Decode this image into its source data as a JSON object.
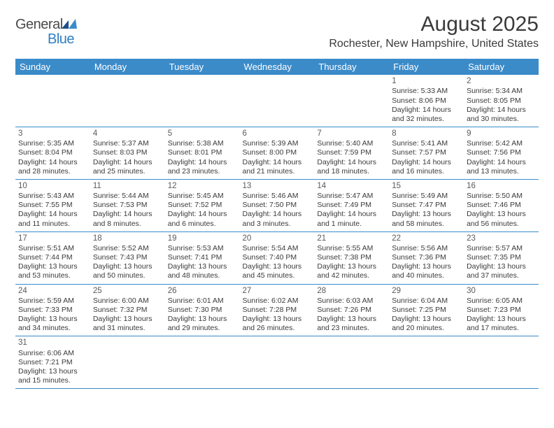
{
  "logo": {
    "part1": "General",
    "part2": "Blue"
  },
  "title": "August 2025",
  "subtitle": "Rochester, New Hampshire, United States",
  "colors": {
    "header_bg": "#3b8bc9",
    "header_fg": "#ffffff",
    "text": "#3a3a3a",
    "logo_blue": "#2f7fc1",
    "row_border": "#3b8bc9"
  },
  "weekdays": [
    "Sunday",
    "Monday",
    "Tuesday",
    "Wednesday",
    "Thursday",
    "Friday",
    "Saturday"
  ],
  "grid": [
    [
      null,
      null,
      null,
      null,
      null,
      {
        "n": "1",
        "sr": "5:33 AM",
        "ss": "8:06 PM",
        "dl": "14 hours and 32 minutes."
      },
      {
        "n": "2",
        "sr": "5:34 AM",
        "ss": "8:05 PM",
        "dl": "14 hours and 30 minutes."
      }
    ],
    [
      {
        "n": "3",
        "sr": "5:35 AM",
        "ss": "8:04 PM",
        "dl": "14 hours and 28 minutes."
      },
      {
        "n": "4",
        "sr": "5:37 AM",
        "ss": "8:03 PM",
        "dl": "14 hours and 25 minutes."
      },
      {
        "n": "5",
        "sr": "5:38 AM",
        "ss": "8:01 PM",
        "dl": "14 hours and 23 minutes."
      },
      {
        "n": "6",
        "sr": "5:39 AM",
        "ss": "8:00 PM",
        "dl": "14 hours and 21 minutes."
      },
      {
        "n": "7",
        "sr": "5:40 AM",
        "ss": "7:59 PM",
        "dl": "14 hours and 18 minutes."
      },
      {
        "n": "8",
        "sr": "5:41 AM",
        "ss": "7:57 PM",
        "dl": "14 hours and 16 minutes."
      },
      {
        "n": "9",
        "sr": "5:42 AM",
        "ss": "7:56 PM",
        "dl": "14 hours and 13 minutes."
      }
    ],
    [
      {
        "n": "10",
        "sr": "5:43 AM",
        "ss": "7:55 PM",
        "dl": "14 hours and 11 minutes."
      },
      {
        "n": "11",
        "sr": "5:44 AM",
        "ss": "7:53 PM",
        "dl": "14 hours and 8 minutes."
      },
      {
        "n": "12",
        "sr": "5:45 AM",
        "ss": "7:52 PM",
        "dl": "14 hours and 6 minutes."
      },
      {
        "n": "13",
        "sr": "5:46 AM",
        "ss": "7:50 PM",
        "dl": "14 hours and 3 minutes."
      },
      {
        "n": "14",
        "sr": "5:47 AM",
        "ss": "7:49 PM",
        "dl": "14 hours and 1 minute."
      },
      {
        "n": "15",
        "sr": "5:49 AM",
        "ss": "7:47 PM",
        "dl": "13 hours and 58 minutes."
      },
      {
        "n": "16",
        "sr": "5:50 AM",
        "ss": "7:46 PM",
        "dl": "13 hours and 56 minutes."
      }
    ],
    [
      {
        "n": "17",
        "sr": "5:51 AM",
        "ss": "7:44 PM",
        "dl": "13 hours and 53 minutes."
      },
      {
        "n": "18",
        "sr": "5:52 AM",
        "ss": "7:43 PM",
        "dl": "13 hours and 50 minutes."
      },
      {
        "n": "19",
        "sr": "5:53 AM",
        "ss": "7:41 PM",
        "dl": "13 hours and 48 minutes."
      },
      {
        "n": "20",
        "sr": "5:54 AM",
        "ss": "7:40 PM",
        "dl": "13 hours and 45 minutes."
      },
      {
        "n": "21",
        "sr": "5:55 AM",
        "ss": "7:38 PM",
        "dl": "13 hours and 42 minutes."
      },
      {
        "n": "22",
        "sr": "5:56 AM",
        "ss": "7:36 PM",
        "dl": "13 hours and 40 minutes."
      },
      {
        "n": "23",
        "sr": "5:57 AM",
        "ss": "7:35 PM",
        "dl": "13 hours and 37 minutes."
      }
    ],
    [
      {
        "n": "24",
        "sr": "5:59 AM",
        "ss": "7:33 PM",
        "dl": "13 hours and 34 minutes."
      },
      {
        "n": "25",
        "sr": "6:00 AM",
        "ss": "7:32 PM",
        "dl": "13 hours and 31 minutes."
      },
      {
        "n": "26",
        "sr": "6:01 AM",
        "ss": "7:30 PM",
        "dl": "13 hours and 29 minutes."
      },
      {
        "n": "27",
        "sr": "6:02 AM",
        "ss": "7:28 PM",
        "dl": "13 hours and 26 minutes."
      },
      {
        "n": "28",
        "sr": "6:03 AM",
        "ss": "7:26 PM",
        "dl": "13 hours and 23 minutes."
      },
      {
        "n": "29",
        "sr": "6:04 AM",
        "ss": "7:25 PM",
        "dl": "13 hours and 20 minutes."
      },
      {
        "n": "30",
        "sr": "6:05 AM",
        "ss": "7:23 PM",
        "dl": "13 hours and 17 minutes."
      }
    ],
    [
      {
        "n": "31",
        "sr": "6:06 AM",
        "ss": "7:21 PM",
        "dl": "13 hours and 15 minutes."
      },
      null,
      null,
      null,
      null,
      null,
      null
    ]
  ],
  "labels": {
    "sunrise": "Sunrise: ",
    "sunset": "Sunset: ",
    "daylight": "Daylight: "
  }
}
